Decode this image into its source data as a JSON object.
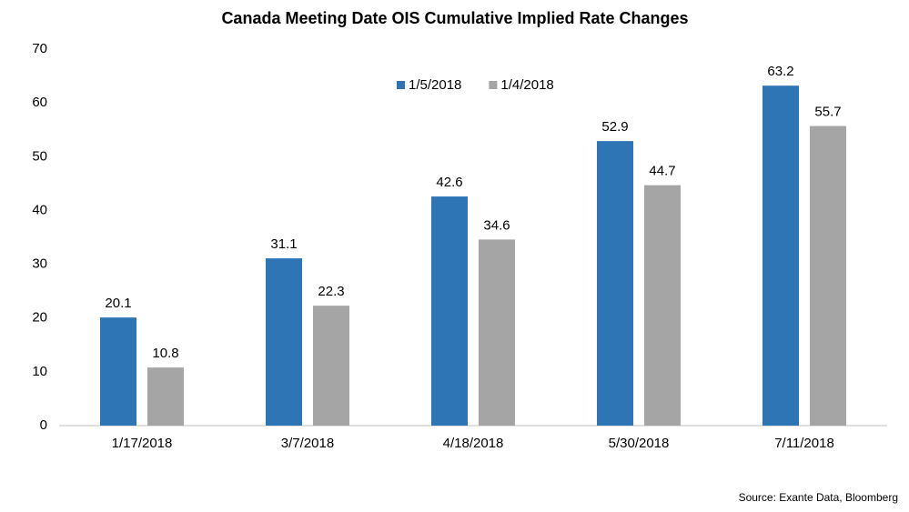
{
  "chart_data": {
    "type": "bar",
    "title": "Canada Meeting Date OIS Cumulative Implied Rate Changes",
    "categories": [
      "1/17/2018",
      "3/7/2018",
      "4/18/2018",
      "5/30/2018",
      "7/11/2018"
    ],
    "series": [
      {
        "name": "1/5/2018",
        "color": "#2e75b6",
        "values": [
          20.1,
          31.1,
          42.6,
          52.9,
          63.2
        ]
      },
      {
        "name": "1/4/2018",
        "color": "#a5a5a5",
        "values": [
          10.8,
          22.3,
          34.6,
          44.7,
          55.7
        ]
      }
    ],
    "ylim": [
      0,
      70
    ],
    "yticks": [
      0,
      10,
      20,
      30,
      40,
      50,
      60,
      70
    ],
    "grid": false,
    "source": "Source: Exante Data, Bloomberg"
  }
}
